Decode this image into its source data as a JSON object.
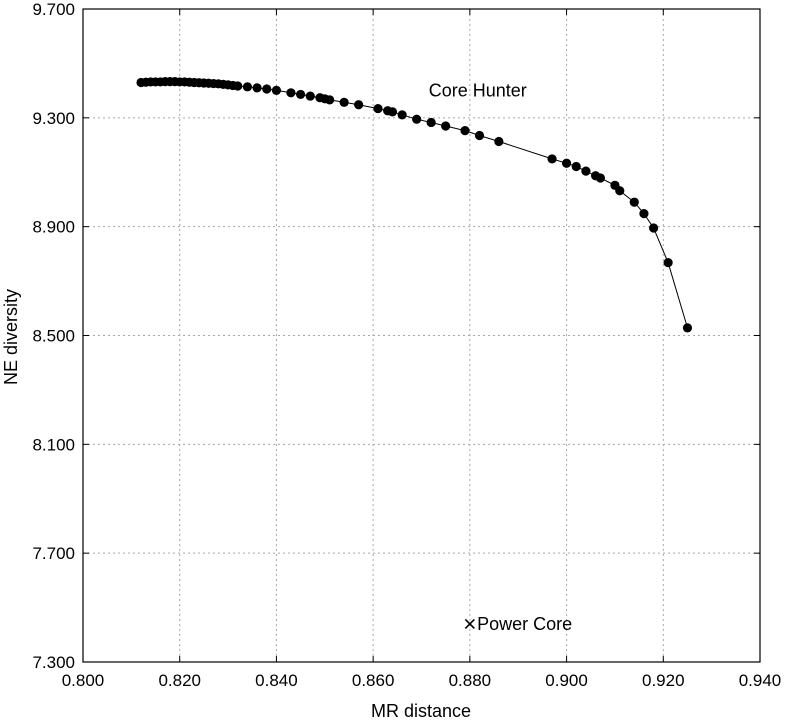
{
  "chart_data": {
    "type": "scatter",
    "xlabel": "MR distance",
    "ylabel": "NE diversity",
    "xlim": [
      0.8,
      0.94
    ],
    "ylim": [
      7.3,
      9.7
    ],
    "x_ticks": [
      "0.800",
      "0.820",
      "0.840",
      "0.860",
      "0.880",
      "0.900",
      "0.920",
      "0.940"
    ],
    "y_ticks": [
      "7.300",
      "7.700",
      "8.100",
      "8.500",
      "8.900",
      "9.300",
      "9.700"
    ],
    "x_tick_values": [
      0.8,
      0.82,
      0.84,
      0.86,
      0.88,
      0.9,
      0.92,
      0.94
    ],
    "y_tick_values": [
      7.3,
      7.7,
      8.1,
      8.5,
      8.9,
      9.3,
      9.7
    ],
    "grid": true,
    "series": [
      {
        "name": "Core Hunter",
        "marker": "filled-circle",
        "connected": true,
        "x": [
          0.812,
          0.813,
          0.814,
          0.815,
          0.816,
          0.817,
          0.818,
          0.819,
          0.82,
          0.821,
          0.822,
          0.823,
          0.824,
          0.825,
          0.826,
          0.827,
          0.828,
          0.829,
          0.83,
          0.831,
          0.832,
          0.834,
          0.836,
          0.838,
          0.84,
          0.843,
          0.845,
          0.847,
          0.849,
          0.85,
          0.851,
          0.854,
          0.857,
          0.861,
          0.863,
          0.864,
          0.866,
          0.869,
          0.872,
          0.875,
          0.879,
          0.882,
          0.886,
          0.897,
          0.9,
          0.902,
          0.904,
          0.906,
          0.907,
          0.91,
          0.911,
          0.914,
          0.916,
          0.918,
          0.921,
          0.925
        ],
        "y": [
          9.43,
          9.431,
          9.432,
          9.432,
          9.432,
          9.433,
          9.433,
          9.433,
          9.432,
          9.432,
          9.431,
          9.43,
          9.429,
          9.428,
          9.427,
          9.426,
          9.425,
          9.423,
          9.421,
          9.419,
          9.417,
          9.414,
          9.41,
          9.406,
          9.401,
          9.392,
          9.386,
          9.38,
          9.374,
          9.37,
          9.366,
          9.357,
          9.348,
          9.334,
          9.326,
          9.322,
          9.311,
          9.295,
          9.283,
          9.27,
          9.253,
          9.235,
          9.213,
          9.149,
          9.133,
          9.121,
          9.104,
          9.087,
          9.079,
          9.052,
          9.032,
          8.99,
          8.948,
          8.895,
          8.768,
          8.528
        ]
      },
      {
        "name": "Power Core",
        "marker": "cross",
        "connected": false,
        "x": [
          0.88
        ],
        "y": [
          7.44
        ]
      }
    ],
    "annotations": [
      {
        "text": "Core Hunter",
        "x": 0.8715,
        "y": 9.4
      },
      {
        "text": "Power Core",
        "x": 0.8815,
        "y": 7.44
      }
    ]
  }
}
